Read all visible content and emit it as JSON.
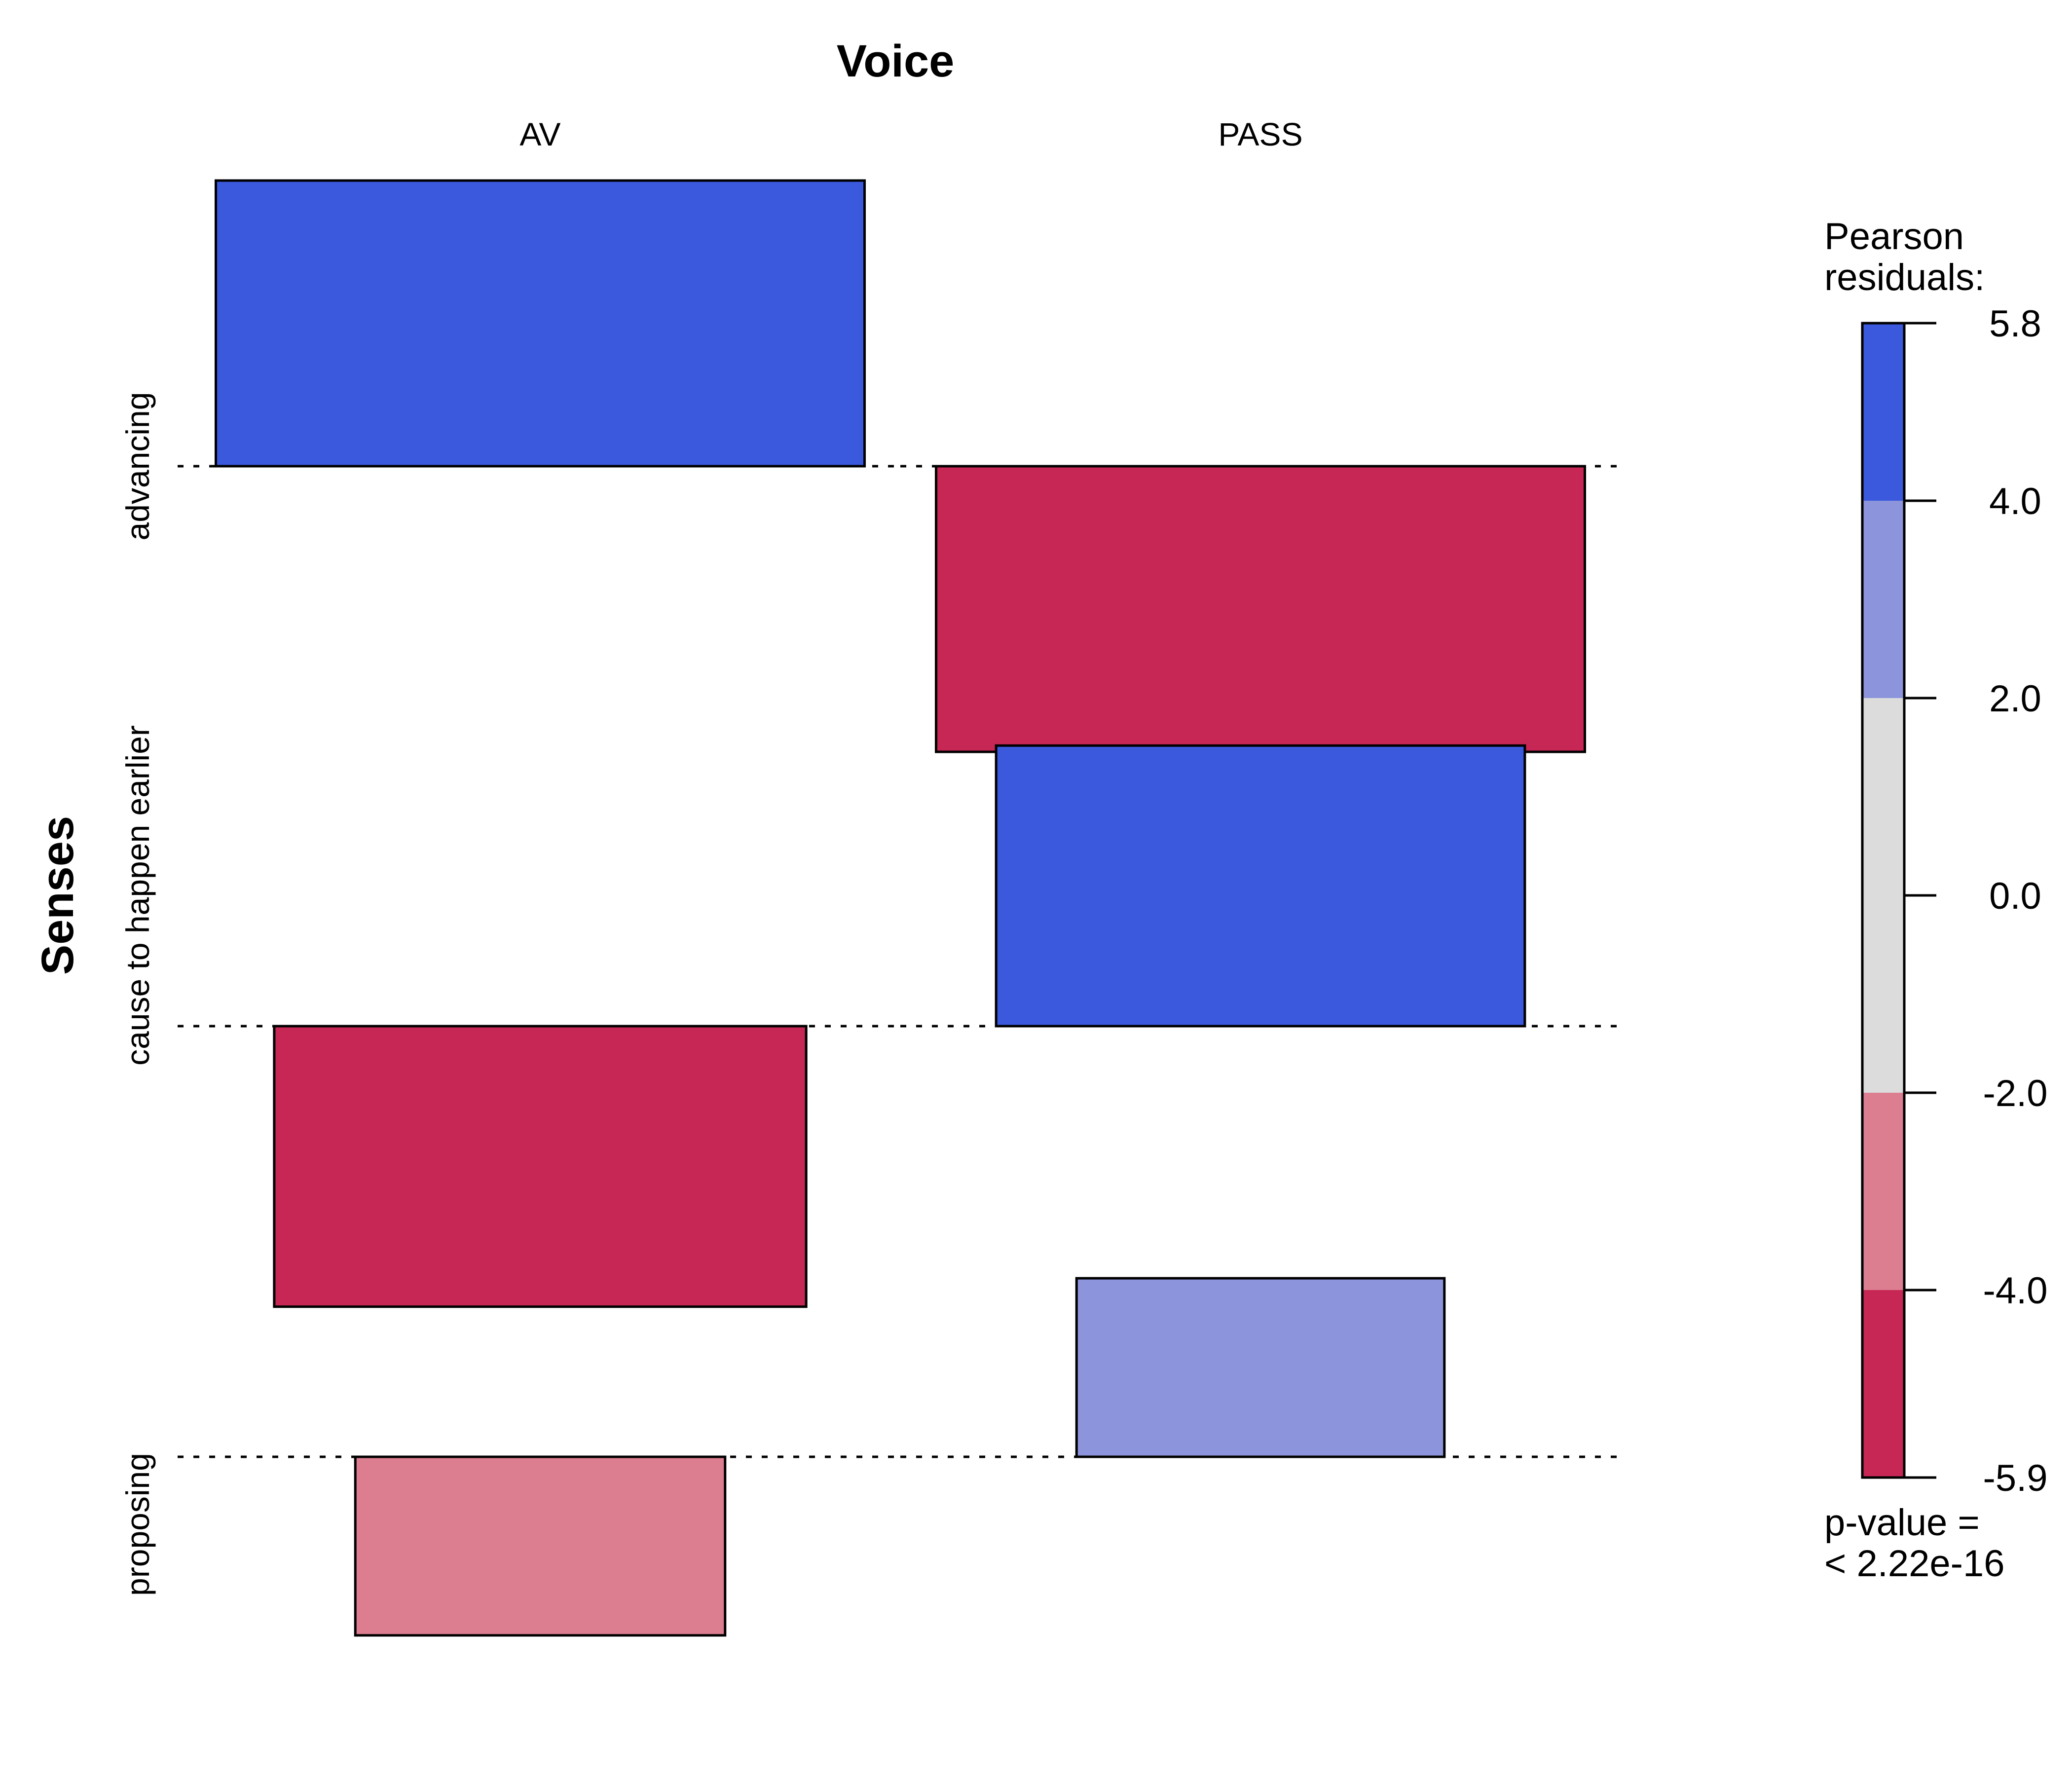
{
  "chart_data": {
    "type": "association",
    "title": "Voice",
    "xlabel": "Voice",
    "ylabel": "Senses",
    "columns": [
      "AV",
      "PASS"
    ],
    "rows": [
      "advancing",
      "cause to happen earlier",
      "proposing"
    ],
    "cells": [
      {
        "row": "advancing",
        "column": "AV",
        "residual": 5.6,
        "band_color": "#3b59dc"
      },
      {
        "row": "advancing",
        "column": "PASS",
        "residual": -5.6,
        "band_color": "#c62755"
      },
      {
        "row": "cause to happen earlier",
        "column": "AV",
        "residual": -5.5,
        "band_color": "#c62755"
      },
      {
        "row": "cause to happen earlier",
        "column": "PASS",
        "residual": 5.5,
        "band_color": "#3b59dc"
      },
      {
        "row": "proposing",
        "column": "AV",
        "residual": -3.5,
        "band_color": "#dc7e90"
      },
      {
        "row": "proposing",
        "column": "PASS",
        "residual": 3.5,
        "band_color": "#8c95db"
      }
    ],
    "legend": {
      "title_lines": [
        "Pearson",
        "residuals:"
      ],
      "range": [
        -5.9,
        5.8
      ],
      "ticks": [
        5.8,
        4.0,
        2.0,
        0.0,
        -2.0,
        -4.0,
        -5.9
      ],
      "tick_labels": [
        "5.8",
        "4.0",
        "2.0",
        "0.0",
        "-2.0",
        "-4.0",
        "-5.9"
      ],
      "bands": [
        {
          "from": 4.0,
          "to": 5.8,
          "color": "#3b59dc"
        },
        {
          "from": 2.0,
          "to": 4.0,
          "color": "#8c95db"
        },
        {
          "from": -2.0,
          "to": 2.0,
          "color": "#dcdcdc"
        },
        {
          "from": -4.0,
          "to": -2.0,
          "color": "#dc7e90"
        },
        {
          "from": -5.9,
          "to": -4.0,
          "color": "#c62755"
        }
      ],
      "pvalue_lines": [
        "p-value =",
        "< 2.22e-16"
      ]
    }
  }
}
